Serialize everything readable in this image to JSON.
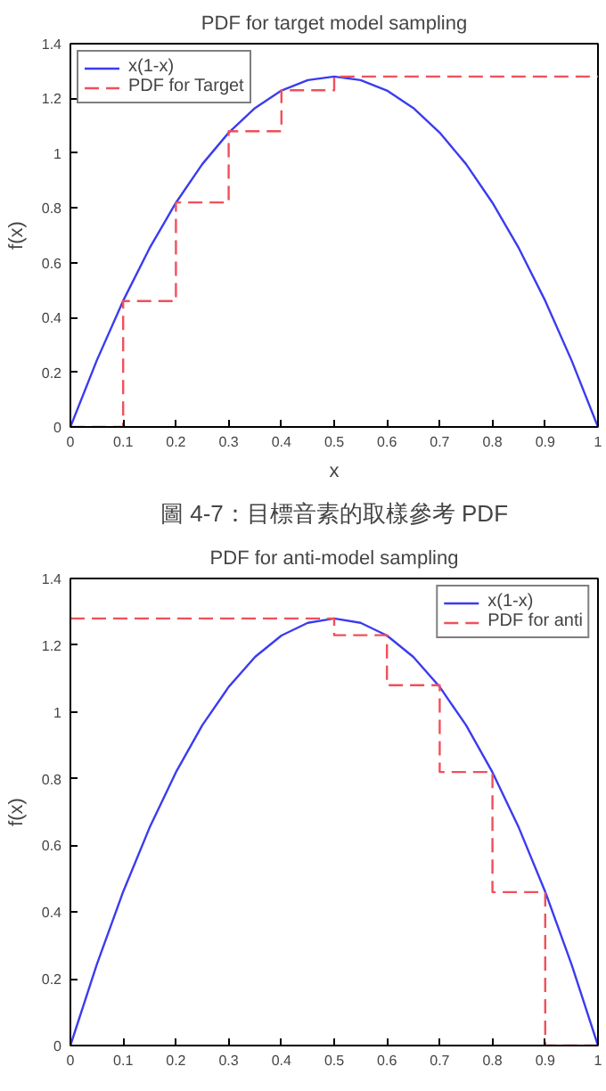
{
  "chart_data": [
    {
      "type": "line",
      "title": "PDF for target model sampling",
      "xlabel": "x",
      "ylabel": "f(x)",
      "annotations": [
        "圖 4-7：目標音素的取樣參考 PDF"
      ],
      "xlim": [
        0,
        1
      ],
      "ylim": [
        0,
        1.4
      ],
      "xticks": [
        0,
        0.1,
        0.2,
        0.3,
        0.4,
        0.5,
        0.6,
        0.7,
        0.8,
        0.9,
        1
      ],
      "yticks": [
        0,
        0.2,
        0.4,
        0.6,
        0.8,
        1,
        1.2,
        1.4
      ],
      "grid": false,
      "legend": "top left",
      "series": [
        {
          "name": "x(1-x)",
          "color": "#3b3bf0",
          "line_style": "solid",
          "x": [
            0,
            0.05,
            0.1,
            0.15,
            0.2,
            0.25,
            0.3,
            0.35,
            0.4,
            0.45,
            0.5,
            0.55,
            0.6,
            0.65,
            0.7,
            0.75,
            0.8,
            0.85,
            0.9,
            0.95,
            1
          ],
          "values": [
            0,
            0.243,
            0.461,
            0.653,
            0.819,
            0.96,
            1.075,
            1.165,
            1.229,
            1.267,
            1.28,
            1.267,
            1.229,
            1.165,
            1.075,
            0.96,
            0.819,
            0.653,
            0.461,
            0.243,
            0
          ]
        },
        {
          "name": "PDF for Target",
          "type": "step",
          "color": "#f0505a",
          "line_style": "dashed",
          "x": [
            0,
            0.1,
            0.2,
            0.3,
            0.4,
            0.5,
            1
          ],
          "values": [
            0,
            0.46,
            0.82,
            1.08,
            1.23,
            1.28,
            1.28
          ]
        }
      ]
    },
    {
      "type": "line",
      "title": "PDF for anti-model sampling",
      "ylabel": "f(x)",
      "xlim": [
        0,
        1
      ],
      "ylim": [
        0,
        1.4
      ],
      "xticks": [
        0,
        0.1,
        0.2,
        0.3,
        0.4,
        0.5,
        0.6,
        0.7,
        0.8,
        0.9,
        1
      ],
      "yticks": [
        0,
        0.2,
        0.4,
        0.6,
        0.8,
        1,
        1.2,
        1.4
      ],
      "grid": false,
      "legend": "top right",
      "series": [
        {
          "name": "x(1-x)",
          "color": "#3b3bf0",
          "line_style": "solid",
          "x": [
            0,
            0.05,
            0.1,
            0.15,
            0.2,
            0.25,
            0.3,
            0.35,
            0.4,
            0.45,
            0.5,
            0.55,
            0.6,
            0.65,
            0.7,
            0.75,
            0.8,
            0.85,
            0.9,
            0.95,
            1
          ],
          "values": [
            0,
            0.243,
            0.461,
            0.653,
            0.819,
            0.96,
            1.075,
            1.165,
            1.229,
            1.267,
            1.28,
            1.267,
            1.229,
            1.165,
            1.075,
            0.96,
            0.819,
            0.653,
            0.461,
            0.243,
            0
          ]
        },
        {
          "name": "PDF for anti",
          "type": "step",
          "color": "#f0505a",
          "line_style": "dashed",
          "x": [
            0,
            0.5,
            0.6,
            0.7,
            0.8,
            0.9,
            1
          ],
          "values": [
            1.28,
            1.23,
            1.08,
            0.82,
            0.46,
            0,
            0
          ]
        }
      ]
    }
  ]
}
